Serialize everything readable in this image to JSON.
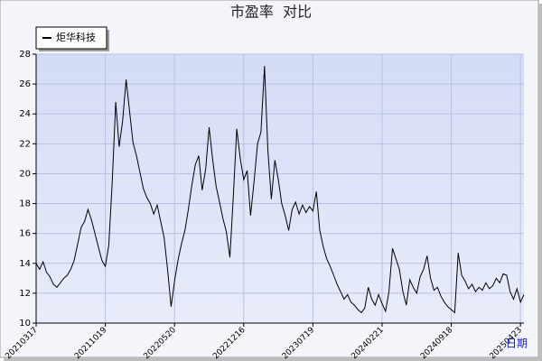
{
  "chart_data": {
    "type": "line",
    "title": "市盈率  对比",
    "x_label": "日期",
    "xlim": [
      0,
      141
    ],
    "xticks": [
      {
        "value": 0,
        "label": "20210317"
      },
      {
        "value": 20,
        "label": "20211019"
      },
      {
        "value": 40,
        "label": "20220520"
      },
      {
        "value": 60,
        "label": "20221216"
      },
      {
        "value": 80,
        "label": "20230719"
      },
      {
        "value": 100,
        "label": "20240221"
      },
      {
        "value": 120,
        "label": "20240918"
      },
      {
        "value": 140,
        "label": "20250423"
      }
    ],
    "ylim": [
      10,
      28
    ],
    "yticks": [
      10,
      12,
      14,
      16,
      18,
      20,
      22,
      24,
      26,
      28
    ],
    "grid": true,
    "legend": "top-left",
    "series": [
      {
        "name": "炬华科技",
        "color": "#000000",
        "values": [
          14,
          13.6,
          14.1,
          13.4,
          13.1,
          12.6,
          12.4,
          12.7,
          13,
          13.2,
          13.6,
          14.2,
          15.3,
          16.4,
          16.8,
          17.6,
          16.9,
          16,
          15.1,
          14.2,
          13.8,
          15.2,
          19.5,
          24.8,
          21.8,
          23.5,
          26.3,
          24.2,
          22.1,
          21.2,
          20.1,
          19,
          18.4,
          18,
          17.3,
          17.9,
          16.8,
          15.7,
          13.6,
          11.1,
          12.8,
          14.2,
          15.3,
          16.2,
          17.6,
          19.2,
          20.6,
          21.2,
          18.9,
          20.3,
          23.1,
          21,
          19.2,
          18.1,
          17,
          16.1,
          14.4,
          18.5,
          23,
          21,
          19.6,
          20.2,
          17.2,
          19.5,
          22,
          22.8,
          27.2,
          21.5,
          18.3,
          20.9,
          19.6,
          18,
          17.2,
          16.2,
          17.6,
          18.1,
          17.3,
          17.9,
          17.4,
          17.8,
          17.5,
          18.8,
          16.2,
          15.1,
          14.3,
          13.8,
          13.2,
          12.6,
          12.1,
          11.6,
          11.9,
          11.4,
          11.2,
          10.9,
          10.7,
          11,
          12.4,
          11.6,
          11.2,
          11.9,
          11.3,
          10.8,
          12.1,
          15,
          14.3,
          13.6,
          12.1,
          11.2,
          12.9,
          12.4,
          12,
          13.1,
          13.6,
          14.5,
          13,
          12.2,
          12.4,
          11.8,
          11.4,
          11.1,
          10.9,
          10.7,
          14.7,
          13.2,
          12.8,
          12.3,
          12.6,
          12.1,
          12.4,
          12.2,
          12.7,
          12.3,
          12.5,
          13,
          12.7,
          13.3,
          13.2,
          12.1,
          11.6,
          12.3,
          11.4,
          11.9
        ]
      }
    ]
  }
}
